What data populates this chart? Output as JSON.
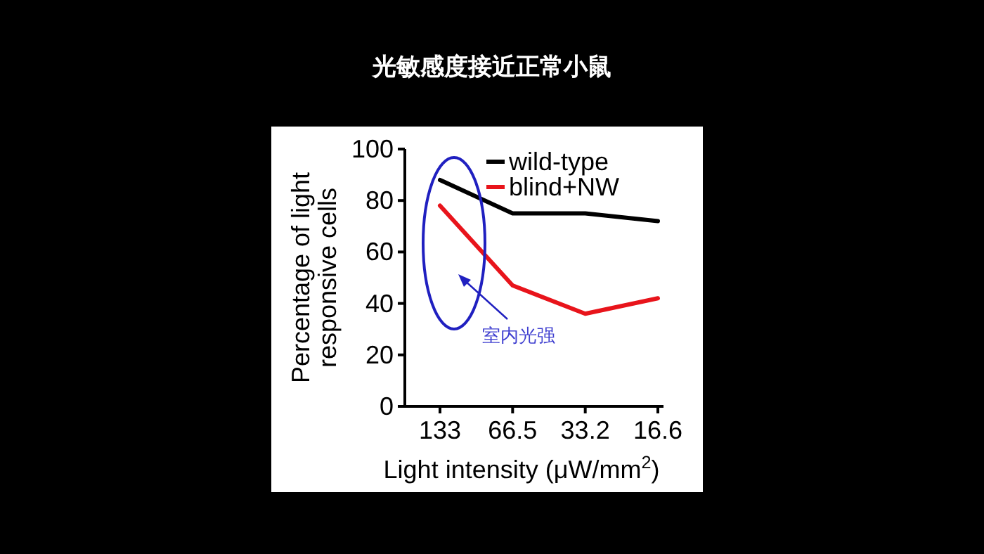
{
  "chart_data": {
    "type": "line",
    "title": "光敏感度接近正常小鼠",
    "xlabel": "Light intensity (μW/mm$^{2}$)",
    "ylabel": "Percentage of light responsive cells",
    "categories": [
      "133",
      "66.5",
      "33.2",
      "16.6"
    ],
    "series": [
      {
        "name": "wild-type",
        "color": "#000000",
        "values": [
          88,
          75,
          75,
          72
        ]
      },
      {
        "name": "blind+NW",
        "color": "#e8141b",
        "values": [
          78,
          47,
          36,
          42
        ]
      }
    ],
    "ylim": [
      0,
      100
    ],
    "yticks": [
      0,
      20,
      40,
      60,
      80,
      100
    ],
    "grid": false,
    "legend": "top right",
    "marker": "none",
    "line_style": "solid",
    "annotations": [
      "室内光强"
    ]
  }
}
